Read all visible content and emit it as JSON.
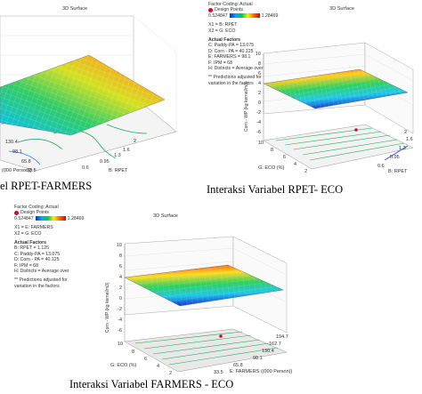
{
  "captions": {
    "top_left": "el RPET-FARMERS",
    "top_right": "Interaksi Variabel RPET- ECO",
    "bottom": "Interaksi Variabel FARMERS - ECO"
  },
  "legend_common": {
    "factor_coding": "Factor Coding: Actual",
    "design_points": "Design Points",
    "range_min": "0.524847",
    "range_max": "1.28469",
    "actual_factors_title": "Actual Factors",
    "note_line1": "** Predictions adjusted for",
    "note_line2": "variation in the factors"
  },
  "colors": {
    "design_point": "#c8102e",
    "surface_low": "#0033cc",
    "surface_high": "#dd0000"
  },
  "panels": [
    {
      "title": "3D Surface",
      "legend": null,
      "chart_data": {
        "type": "surface",
        "x_ticks": [
          "130.4",
          "98.1",
          "65.8",
          "33.5"
        ],
        "x_label": "(000 Person))",
        "y_ticks": [
          "2",
          "1.6",
          "1.3",
          "0.95",
          "0.6"
        ],
        "y_label": "B: RPET",
        "z_ticks": [],
        "z_label": ""
      }
    },
    {
      "title": "3D Surface",
      "legend": {
        "x1": "X1 = B: RPET",
        "x2": "X2 = G: ECO",
        "factors": [
          "C: Paddy-PA = 13.075",
          "D: Corn - PA = 40.125",
          "E: FARMERS = 98.1",
          "F: IPM = 68",
          "H: Districts = Average over"
        ]
      },
      "chart_data": {
        "type": "surface",
        "x_ticks": [
          "10",
          "8",
          "6",
          "4",
          "2"
        ],
        "x_label": "G: ECO (%)",
        "y_ticks": [
          "2",
          "1.6",
          "1.3",
          "0.95",
          "0.6"
        ],
        "y_label": "B: RPET",
        "z_ticks": [
          "10",
          "8",
          "6",
          "4",
          "2",
          "0",
          "-2",
          "-4",
          "-6"
        ],
        "z_label": "Corn - WP (kg kernel/m3)"
      }
    },
    {
      "title": "3D Surface",
      "legend": {
        "x1": "X1 = E: FARMERS",
        "x2": "X2 = G: ECO",
        "factors": [
          "B: RPET = 1.125",
          "C: Paddy-PA = 13.075",
          "D: Corn - PA = 40.125",
          "F: IPM = 68",
          "H: Districts = Average over"
        ]
      },
      "chart_data": {
        "type": "surface",
        "x_ticks": [
          "10",
          "8",
          "6",
          "4",
          "2"
        ],
        "x_label": "G: ECO (%)",
        "y_ticks": [
          "194.7",
          "162.7",
          "130.4",
          "98.1",
          "65.8",
          "33.5"
        ],
        "y_label": "E: FARMERS ((000 Person))",
        "z_ticks": [
          "10",
          "8",
          "6",
          "4",
          "2",
          "0",
          "-2",
          "-4",
          "-6"
        ],
        "z_label": "Corn - WP (kg kernel/m3)"
      }
    }
  ]
}
